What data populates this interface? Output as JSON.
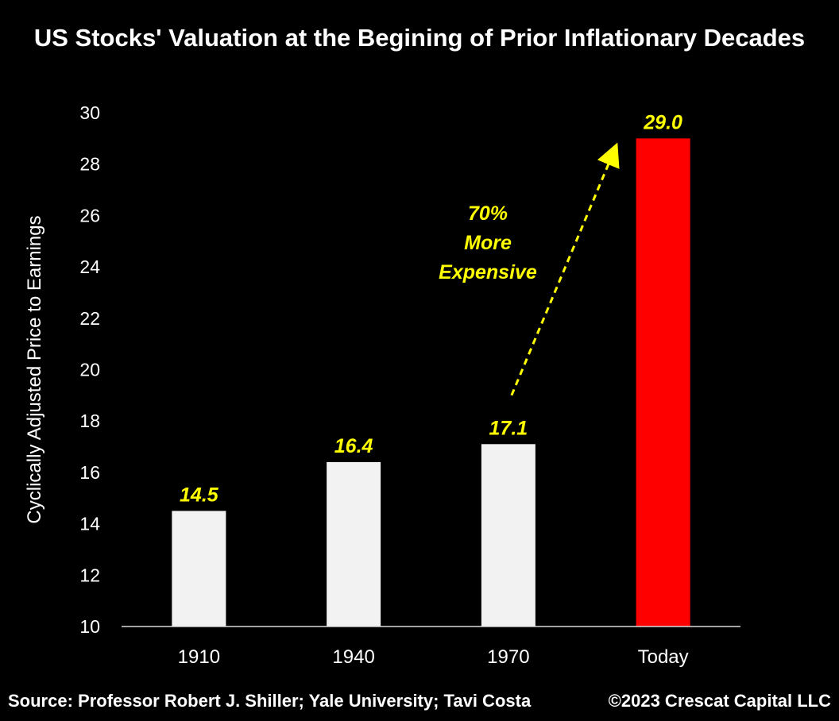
{
  "chart_data": {
    "type": "bar",
    "title": "US Stocks' Valuation at the Begining of Prior Inflationary Decades",
    "xlabel": "",
    "ylabel": "Cyclically Adjusted Price to Earnings",
    "ylim": [
      10,
      30
    ],
    "yticks": [
      10,
      12,
      14,
      16,
      18,
      20,
      22,
      24,
      26,
      28,
      30
    ],
    "categories": [
      "1910",
      "1940",
      "1970",
      "Today"
    ],
    "values": [
      14.5,
      16.4,
      17.1,
      29.0
    ],
    "value_labels": [
      "14.5",
      "16.4",
      "17.1",
      "29.0"
    ],
    "bar_colors": [
      "#f2f2f2",
      "#f2f2f2",
      "#f2f2f2",
      "#ff0000"
    ],
    "label_color": "#ffff00",
    "grid": false,
    "annotation": {
      "lines": [
        "70%",
        "More",
        "Expensive"
      ],
      "arrow": {
        "from": {
          "category": "1970",
          "y": 19.0
        },
        "to": {
          "category": "Today",
          "y": 28.5
        }
      },
      "color": "#ffff00"
    }
  },
  "footer": {
    "source": "Source: Professor Robert J. Shiller; Yale University; Tavi Costa",
    "copyright": "©2023 Crescat Capital LLC"
  }
}
